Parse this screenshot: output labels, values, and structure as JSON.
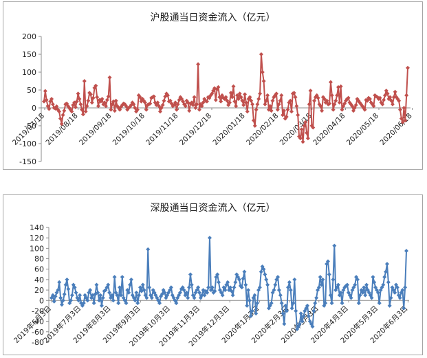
{
  "chart_data": [
    {
      "type": "line",
      "title": "沪股通当日资金流入（亿元）",
      "color": "#c0504d",
      "marker": "diamond",
      "grid": false,
      "ylim": [
        -150,
        200
      ],
      "yticks": [
        -150,
        -100,
        -50,
        0,
        50,
        100,
        150,
        200
      ],
      "xtick_labels": [
        "2019/07/18",
        "2019/08/18",
        "2019/09/18",
        "2019/10/18",
        "2019/11/18",
        "2019/12/18",
        "2020/01/18",
        "2020/02/18",
        "2020/03/18",
        "2020/04/18",
        "2020/05/18",
        "2020/06/18"
      ],
      "values": [
        18,
        47,
        22,
        5,
        -3,
        18,
        25,
        10,
        0,
        -2,
        4,
        -5,
        -10,
        -30,
        -45,
        -20,
        -8,
        10,
        12,
        5,
        0,
        -5,
        -10,
        8,
        15,
        2,
        18,
        40,
        25,
        10,
        -5,
        -18,
        75,
        -10,
        5,
        20,
        42,
        38,
        15,
        28,
        56,
        62,
        30,
        5,
        22,
        18,
        25,
        10,
        15,
        5,
        22,
        32,
        85,
        -5,
        10,
        18,
        -8,
        20,
        5,
        0,
        -5,
        3,
        8,
        12,
        10,
        5,
        -5,
        0,
        3,
        8,
        15,
        10,
        0,
        -10,
        -5,
        35,
        30,
        18,
        25,
        20,
        15,
        -5,
        8,
        10,
        12,
        28,
        30,
        32,
        15,
        8,
        15,
        5,
        -10,
        0,
        8,
        20,
        32,
        40,
        35,
        18,
        20,
        12,
        5,
        8,
        15,
        -5,
        10,
        22,
        30,
        25,
        18,
        10,
        5,
        20,
        15,
        -8,
        12,
        15,
        8,
        30,
        0,
        10,
        122,
        -5,
        10,
        5,
        15,
        25,
        20,
        18,
        30,
        28,
        35,
        40,
        48,
        55,
        22,
        52,
        58,
        30,
        18,
        35,
        28,
        25,
        30,
        20,
        8,
        15,
        42,
        30,
        60,
        18,
        5,
        35,
        25,
        40,
        30,
        20,
        8,
        38,
        15,
        -10,
        25,
        30,
        20,
        10,
        -35,
        -50,
        -5,
        10,
        25,
        40,
        150,
        100,
        75,
        10,
        20,
        35,
        -5,
        5,
        -8,
        20,
        30,
        35,
        40,
        -5,
        10,
        20,
        35,
        -20,
        -8,
        -30,
        -25,
        -5,
        15,
        20,
        -10,
        40,
        42,
        30,
        5,
        -20,
        -80,
        -85,
        -60,
        -95,
        -50,
        -40,
        -70,
        -85,
        10,
        48,
        -50,
        -55,
        20,
        30,
        35,
        28,
        10,
        5,
        -8,
        30,
        25,
        15,
        20,
        10,
        12,
        72,
        35,
        -5,
        10,
        20,
        35,
        58,
        15,
        60,
        -5,
        5,
        12,
        20,
        25,
        28,
        15,
        10,
        5,
        -8,
        0,
        8,
        25,
        20,
        15,
        10,
        5,
        0,
        -5,
        22,
        20,
        28,
        25,
        15,
        10,
        5,
        35,
        32,
        30,
        25,
        28,
        15,
        10,
        22,
        35,
        48,
        40,
        25,
        30,
        20,
        10,
        30,
        45,
        30,
        25,
        20,
        -5,
        -30,
        -40,
        0,
        -35,
        35,
        112
      ]
    },
    {
      "type": "line",
      "title": "深股通当日资金流入（亿元）",
      "color": "#4a7ebb",
      "marker": "diamond",
      "grid": false,
      "ylim": [
        -80,
        140
      ],
      "yticks": [
        -80,
        -60,
        -40,
        -20,
        0,
        20,
        40,
        60,
        80,
        100,
        120,
        140
      ],
      "xtick_labels": [
        "2019年6月3日",
        "2019年7月3日",
        "2019年8月3日",
        "2019年9月3日",
        "2019年10月3日",
        "2019年11月3日",
        "2019年12月3日",
        "2020年1月3日",
        "2020年2月3日",
        "2020年3月3日",
        "2020年4月3日",
        "2020年5月3日",
        "2020年6月3日"
      ],
      "values": [
        5,
        10,
        -2,
        8,
        15,
        20,
        35,
        5,
        -8,
        0,
        12,
        30,
        40,
        22,
        -5,
        0,
        10,
        30,
        25,
        15,
        5,
        0,
        10,
        -5,
        -10,
        -5,
        10,
        5,
        0,
        15,
        20,
        5,
        10,
        -5,
        12,
        30,
        15,
        0,
        10,
        -10,
        5,
        18,
        20,
        25,
        30,
        15,
        5,
        10,
        0,
        45,
        15,
        10,
        -5,
        25,
        10,
        45,
        5,
        0,
        -5,
        20,
        15,
        30,
        40,
        10,
        5,
        0,
        15,
        -5,
        10,
        25,
        18,
        30,
        20,
        10,
        5,
        98,
        25,
        10,
        5,
        20,
        15,
        10,
        5,
        0,
        -5,
        8,
        12,
        20,
        15,
        5,
        10,
        15,
        20,
        25,
        10,
        5,
        0,
        -5,
        5,
        10,
        15,
        22,
        25,
        20,
        10,
        15,
        5,
        25,
        50,
        30,
        10,
        5,
        15,
        20,
        25,
        15,
        5,
        10,
        20,
        10,
        18,
        15,
        25,
        120,
        20,
        25,
        15,
        18,
        45,
        50,
        35,
        20,
        15,
        10,
        25,
        20,
        30,
        35,
        20,
        25,
        18,
        10,
        25,
        35,
        50,
        45,
        40,
        28,
        25,
        42,
        55,
        30,
        -10,
        20,
        0,
        -30,
        -20,
        5,
        10,
        -25,
        -5,
        20,
        25,
        55,
        65,
        60,
        50,
        40,
        30,
        -15,
        -10,
        -5,
        15,
        20,
        30,
        40,
        45,
        20,
        10,
        -5,
        -25,
        -45,
        -10,
        -20,
        25,
        35,
        20,
        -15,
        -5,
        40,
        -20,
        -55,
        -50,
        -45,
        -25,
        -40,
        -30,
        -20,
        -15,
        -10,
        -30,
        -40,
        -45,
        -50,
        -20,
        -5,
        5,
        20,
        25,
        45,
        30,
        40,
        -10,
        -5,
        70,
        75,
        50,
        10,
        -5,
        40,
        105,
        20,
        25,
        30,
        10,
        15,
        -5,
        20,
        25,
        28,
        30,
        15,
        10,
        5,
        20,
        25,
        30,
        45,
        40,
        -5,
        10,
        20,
        15,
        25,
        10,
        30,
        20,
        15,
        10,
        5,
        45,
        35,
        25,
        20,
        15,
        -5,
        20,
        25,
        30,
        45,
        55,
        70,
        35,
        -10,
        5,
        25,
        20,
        15,
        30,
        25,
        10,
        5,
        15,
        20,
        -15,
        25,
        95
      ]
    }
  ]
}
